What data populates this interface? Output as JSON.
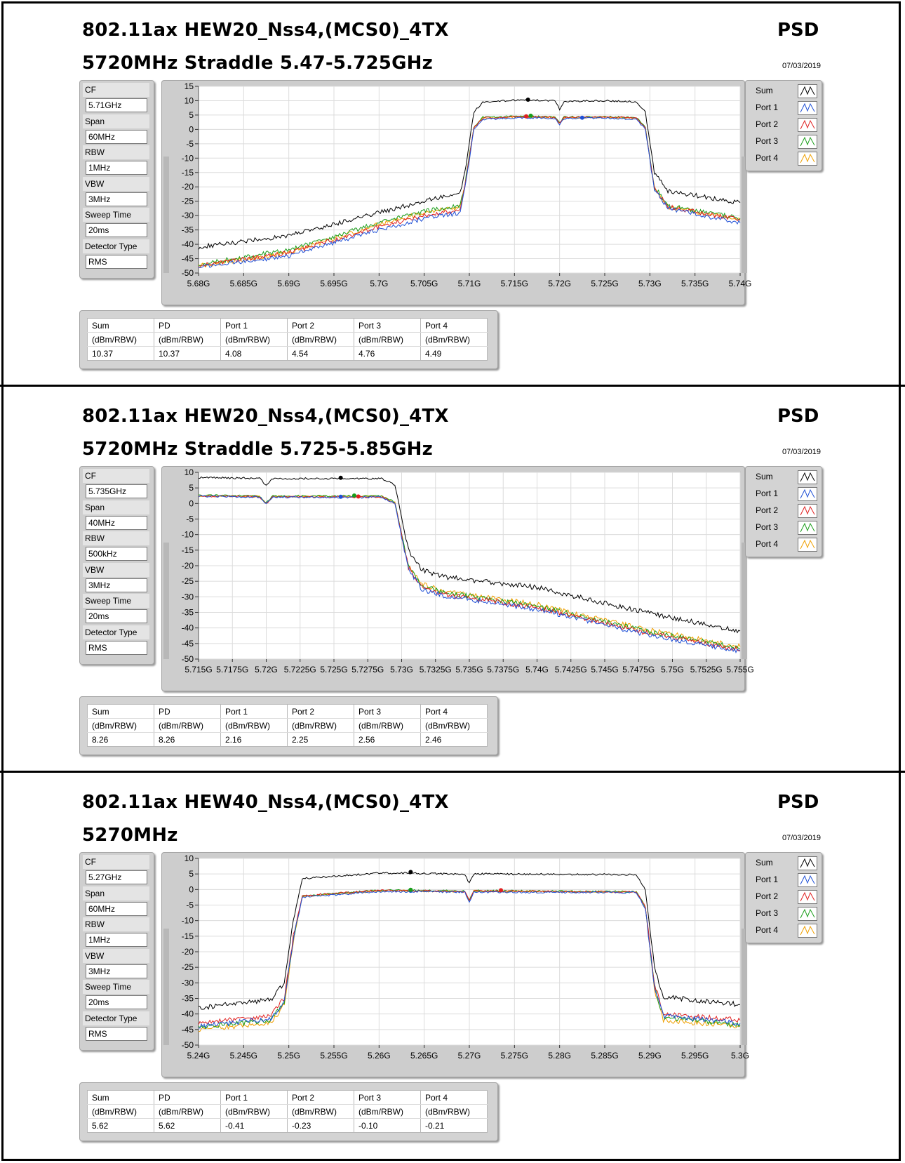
{
  "sections": [
    {
      "title_line1": "802.11ax HEW20_Nss4,(MCS0)_4TX",
      "title_line2": "5720MHz Straddle 5.47-5.725GHz",
      "mode_label": "PSD",
      "date": "07/03/2019",
      "settings": [
        {
          "label": "CF",
          "value": "5.71GHz"
        },
        {
          "label": "Span",
          "value": "60MHz"
        },
        {
          "label": "RBW",
          "value": "1MHz"
        },
        {
          "label": "VBW",
          "value": "3MHz"
        },
        {
          "label": "Sweep Time",
          "value": "20ms"
        },
        {
          "label": "Detector Type",
          "value": "RMS"
        }
      ],
      "table": {
        "headers": [
          "Sum",
          "PD",
          "Port 1",
          "Port 2",
          "Port 3",
          "Port 4"
        ],
        "units": [
          "(dBm/RBW)",
          "(dBm/RBW)",
          "(dBm/RBW)",
          "(dBm/RBW)",
          "(dBm/RBW)",
          "(dBm/RBW)"
        ],
        "values": [
          "10.37",
          "10.37",
          "4.08",
          "4.54",
          "4.76",
          "4.49"
        ]
      }
    },
    {
      "title_line1": "802.11ax HEW20_Nss4,(MCS0)_4TX",
      "title_line2": "5720MHz Straddle 5.725-5.85GHz",
      "mode_label": "PSD",
      "date": "07/03/2019",
      "settings": [
        {
          "label": "CF",
          "value": "5.735GHz"
        },
        {
          "label": "Span",
          "value": "40MHz"
        },
        {
          "label": "RBW",
          "value": "500kHz"
        },
        {
          "label": "VBW",
          "value": "3MHz"
        },
        {
          "label": "Sweep Time",
          "value": "20ms"
        },
        {
          "label": "Detector Type",
          "value": "RMS"
        }
      ],
      "table": {
        "headers": [
          "Sum",
          "PD",
          "Port 1",
          "Port 2",
          "Port 3",
          "Port 4"
        ],
        "units": [
          "(dBm/RBW)",
          "(dBm/RBW)",
          "(dBm/RBW)",
          "(dBm/RBW)",
          "(dBm/RBW)",
          "(dBm/RBW)"
        ],
        "values": [
          "8.26",
          "8.26",
          "2.16",
          "2.25",
          "2.56",
          "2.46"
        ]
      }
    },
    {
      "title_line1": "802.11ax HEW40_Nss4,(MCS0)_4TX",
      "title_line2": "5270MHz",
      "mode_label": "PSD",
      "date": "07/03/2019",
      "settings": [
        {
          "label": "CF",
          "value": "5.27GHz"
        },
        {
          "label": "Span",
          "value": "60MHz"
        },
        {
          "label": "RBW",
          "value": "1MHz"
        },
        {
          "label": "VBW",
          "value": "3MHz"
        },
        {
          "label": "Sweep Time",
          "value": "20ms"
        },
        {
          "label": "Detector Type",
          "value": "RMS"
        }
      ],
      "table": {
        "headers": [
          "Sum",
          "PD",
          "Port 1",
          "Port 2",
          "Port 3",
          "Port 4"
        ],
        "units": [
          "(dBm/RBW)",
          "(dBm/RBW)",
          "(dBm/RBW)",
          "(dBm/RBW)",
          "(dBm/RBW)",
          "(dBm/RBW)"
        ],
        "values": [
          "5.62",
          "5.62",
          "-0.41",
          "-0.23",
          "-0.10",
          "-0.21"
        ]
      }
    }
  ],
  "chart_data": [
    {
      "type": "line",
      "title": "",
      "xlabel": "",
      "ylabel": "",
      "ylim": [
        -50,
        15
      ],
      "yticks": [
        15,
        10,
        5,
        0,
        -5,
        -10,
        -15,
        -20,
        -25,
        -30,
        -35,
        -40,
        -45,
        -50
      ],
      "xlim": [
        5.68,
        5.74
      ],
      "xtick_labels": [
        "5.68G",
        "5.685G",
        "5.69G",
        "5.695G",
        "5.7G",
        "5.705G",
        "5.71G",
        "5.715G",
        "5.72G",
        "5.725G",
        "5.73G",
        "5.735G",
        "5.74G"
      ],
      "grid": true,
      "legend": "right",
      "series": [
        {
          "name": "Sum",
          "color": "#000000",
          "x": [
            5.68,
            5.69,
            5.7,
            5.705,
            5.709,
            5.7095,
            5.7105,
            5.7115,
            5.716,
            5.7195,
            5.72,
            5.7205,
            5.725,
            5.7285,
            5.7295,
            5.7305,
            5.732,
            5.74
          ],
          "y": [
            -41,
            -37,
            -29,
            -25,
            -22,
            -15,
            6,
            9.5,
            10.3,
            10,
            7,
            9.8,
            10,
            9.6,
            6,
            -15,
            -21.5,
            -25.5
          ]
        },
        {
          "name": "Port 1",
          "color": "#1e4fd6",
          "x": [
            5.68,
            5.69,
            5.7,
            5.705,
            5.709,
            5.7095,
            5.7105,
            5.7115,
            5.716,
            5.7195,
            5.72,
            5.7205,
            5.725,
            5.7285,
            5.7295,
            5.7305,
            5.732,
            5.74
          ],
          "y": [
            -48,
            -44,
            -35,
            -31,
            -29,
            -21,
            0,
            3.5,
            4.1,
            3.8,
            1.5,
            3.8,
            4,
            3.6,
            0,
            -21,
            -27.5,
            -32.5
          ]
        },
        {
          "name": "Port 2",
          "color": "#e02020",
          "x": [
            5.68,
            5.69,
            5.7,
            5.705,
            5.709,
            5.7095,
            5.7105,
            5.7115,
            5.716,
            5.7195,
            5.72,
            5.7205,
            5.725,
            5.7285,
            5.7295,
            5.7305,
            5.732,
            5.74
          ],
          "y": [
            -47.5,
            -43,
            -34,
            -30,
            -28,
            -20,
            0.5,
            4,
            4.5,
            4.2,
            2,
            4.2,
            4.3,
            4,
            0.5,
            -20.5,
            -27,
            -31.5
          ]
        },
        {
          "name": "Port 3",
          "color": "#1a9e1a",
          "x": [
            5.68,
            5.69,
            5.7,
            5.705,
            5.709,
            5.7095,
            5.7105,
            5.7115,
            5.716,
            5.7195,
            5.72,
            5.7205,
            5.725,
            5.7285,
            5.7295,
            5.7305,
            5.732,
            5.74
          ],
          "y": [
            -47,
            -42,
            -32.5,
            -28.5,
            -26.5,
            -19,
            0.8,
            4.2,
            4.7,
            4.3,
            2.2,
            4.3,
            4.4,
            4.1,
            0.8,
            -20,
            -26.5,
            -31
          ]
        },
        {
          "name": "Port 4",
          "color": "#f0a000",
          "x": [
            5.68,
            5.69,
            5.7,
            5.705,
            5.709,
            5.7095,
            5.7105,
            5.7115,
            5.716,
            5.7195,
            5.72,
            5.7205,
            5.725,
            5.7285,
            5.7295,
            5.7305,
            5.732,
            5.74
          ],
          "y": [
            -47.5,
            -43,
            -33,
            -29,
            -27,
            -19.5,
            0.6,
            4,
            4.4,
            4.1,
            2,
            4.1,
            4.2,
            3.9,
            0.6,
            -20.5,
            -27,
            -31.5
          ]
        }
      ],
      "markers": [
        {
          "series": "Sum",
          "x": 5.7165,
          "y": 10.37
        },
        {
          "series": "Port 1",
          "x": 5.7225,
          "y": 4.08
        },
        {
          "series": "Port 2",
          "x": 5.7163,
          "y": 4.54
        },
        {
          "series": "Port 3",
          "x": 5.7168,
          "y": 4.76
        }
      ]
    },
    {
      "type": "line",
      "title": "",
      "xlabel": "",
      "ylabel": "",
      "ylim": [
        -50,
        10
      ],
      "yticks": [
        10,
        5,
        0,
        -5,
        -10,
        -15,
        -20,
        -25,
        -30,
        -35,
        -40,
        -45,
        -50
      ],
      "xlim": [
        5.715,
        5.755
      ],
      "xtick_labels": [
        "5.715G",
        "5.7175G",
        "5.72G",
        "5.7225G",
        "5.725G",
        "5.7275G",
        "5.73G",
        "5.7325G",
        "5.735G",
        "5.7375G",
        "5.74G",
        "5.7425G",
        "5.745G",
        "5.7475G",
        "5.75G",
        "5.7525G",
        "5.755G"
      ],
      "grid": true,
      "legend": "right",
      "series": [
        {
          "name": "Sum",
          "color": "#000000",
          "x": [
            5.715,
            5.7195,
            5.72,
            5.7205,
            5.7285,
            5.7295,
            5.7305,
            5.7315,
            5.733,
            5.74,
            5.748,
            5.755
          ],
          "y": [
            8.3,
            8.1,
            5.8,
            8,
            8,
            6,
            -15,
            -21.5,
            -23.5,
            -27,
            -35,
            -41
          ]
        },
        {
          "name": "Port 1",
          "color": "#1e4fd6",
          "x": [
            5.715,
            5.7195,
            5.72,
            5.7205,
            5.7285,
            5.7295,
            5.7305,
            5.7315,
            5.733,
            5.74,
            5.748,
            5.755
          ],
          "y": [
            2.3,
            2.1,
            -0.2,
            2,
            2,
            0,
            -21,
            -27.5,
            -29.5,
            -34,
            -42,
            -47.5
          ]
        },
        {
          "name": "Port 2",
          "color": "#e02020",
          "x": [
            5.715,
            5.7195,
            5.72,
            5.7205,
            5.7285,
            5.7295,
            5.7305,
            5.7315,
            5.733,
            5.74,
            5.748,
            5.755
          ],
          "y": [
            2.4,
            2.2,
            -0.1,
            2.1,
            2.1,
            0.1,
            -20.5,
            -27,
            -29,
            -33.5,
            -41.5,
            -47
          ]
        },
        {
          "name": "Port 3",
          "color": "#1a9e1a",
          "x": [
            5.715,
            5.7195,
            5.72,
            5.7205,
            5.7285,
            5.7295,
            5.7305,
            5.7315,
            5.733,
            5.74,
            5.748,
            5.755
          ],
          "y": [
            2.6,
            2.4,
            0.1,
            2.4,
            2.4,
            0.4,
            -20,
            -26.5,
            -28.5,
            -33,
            -41,
            -46.5
          ]
        },
        {
          "name": "Port 4",
          "color": "#f0a000",
          "x": [
            5.715,
            5.7195,
            5.72,
            5.7205,
            5.7285,
            5.7295,
            5.7305,
            5.7315,
            5.733,
            5.74,
            5.748,
            5.755
          ],
          "y": [
            2.5,
            2.3,
            0,
            2.3,
            2.3,
            0.3,
            -20,
            -26,
            -28,
            -32.5,
            -40.5,
            -46
          ]
        }
      ],
      "markers": [
        {
          "series": "Sum",
          "x": 5.7255,
          "y": 8.26
        },
        {
          "series": "Port 1",
          "x": 5.7255,
          "y": 2.16
        },
        {
          "series": "Port 2",
          "x": 5.7268,
          "y": 2.25
        },
        {
          "series": "Port 3",
          "x": 5.7265,
          "y": 2.56
        }
      ]
    },
    {
      "type": "line",
      "title": "",
      "xlabel": "",
      "ylabel": "",
      "ylim": [
        -50,
        10
      ],
      "yticks": [
        10,
        5,
        0,
        -5,
        -10,
        -15,
        -20,
        -25,
        -30,
        -35,
        -40,
        -45,
        -50
      ],
      "xlim": [
        5.24,
        5.3
      ],
      "xtick_labels": [
        "5.24G",
        "5.245G",
        "5.25G",
        "5.255G",
        "5.26G",
        "5.265G",
        "5.27G",
        "5.275G",
        "5.28G",
        "5.285G",
        "5.29G",
        "5.295G",
        "5.3G"
      ],
      "grid": true,
      "legend": "right",
      "series": [
        {
          "name": "Sum",
          "color": "#000000",
          "x": [
            5.24,
            5.248,
            5.2495,
            5.2505,
            5.2515,
            5.26,
            5.2695,
            5.27,
            5.2705,
            5.2885,
            5.2895,
            5.2905,
            5.2915,
            5.3
          ],
          "y": [
            -38,
            -35.5,
            -30,
            -10,
            3.5,
            5.3,
            5,
            2,
            5,
            4.8,
            0,
            -25,
            -34.5,
            -37
          ]
        },
        {
          "name": "Port 1",
          "color": "#1e4fd6",
          "x": [
            5.24,
            5.248,
            5.2495,
            5.2505,
            5.2515,
            5.26,
            5.2695,
            5.27,
            5.2705,
            5.2885,
            5.2895,
            5.2905,
            5.2915,
            5.3
          ],
          "y": [
            -44,
            -41.5,
            -36,
            -16,
            -2.5,
            -0.6,
            -0.8,
            -4,
            -0.8,
            -1,
            -6,
            -31,
            -40.5,
            -43
          ]
        },
        {
          "name": "Port 2",
          "color": "#e02020",
          "x": [
            5.24,
            5.248,
            5.2495,
            5.2505,
            5.2515,
            5.26,
            5.2695,
            5.27,
            5.2705,
            5.2885,
            5.2895,
            5.2905,
            5.2915,
            5.3
          ],
          "y": [
            -43,
            -40.5,
            -35,
            -15,
            -2,
            -0.3,
            -0.6,
            -3.5,
            -0.5,
            -0.8,
            -5.5,
            -30,
            -40,
            -42
          ]
        },
        {
          "name": "Port 3",
          "color": "#1a9e1a",
          "x": [
            5.24,
            5.248,
            5.2495,
            5.2505,
            5.2515,
            5.26,
            5.2695,
            5.27,
            5.2705,
            5.2885,
            5.2895,
            5.2905,
            5.2915,
            5.3
          ],
          "y": [
            -44.5,
            -42,
            -36,
            -16,
            -2,
            -0.2,
            -0.5,
            -3.5,
            -0.4,
            -0.7,
            -5.5,
            -31,
            -41,
            -43.5
          ]
        },
        {
          "name": "Port 4",
          "color": "#f0a000",
          "x": [
            5.24,
            5.248,
            5.2495,
            5.2505,
            5.2515,
            5.26,
            5.2695,
            5.27,
            5.2705,
            5.2885,
            5.2895,
            5.2905,
            5.2915,
            5.3
          ],
          "y": [
            -45,
            -43,
            -37,
            -16.5,
            -2.2,
            -0.4,
            -0.6,
            -3.6,
            -0.5,
            -0.8,
            -5.6,
            -32,
            -42,
            -44
          ]
        }
      ],
      "markers": [
        {
          "series": "Sum",
          "x": 5.2635,
          "y": 5.62
        },
        {
          "series": "Port 1",
          "x": 5.2635,
          "y": -0.41
        },
        {
          "series": "Port 2",
          "x": 5.2735,
          "y": -0.23
        },
        {
          "series": "Port 3",
          "x": 5.2635,
          "y": -0.1
        }
      ]
    }
  ]
}
